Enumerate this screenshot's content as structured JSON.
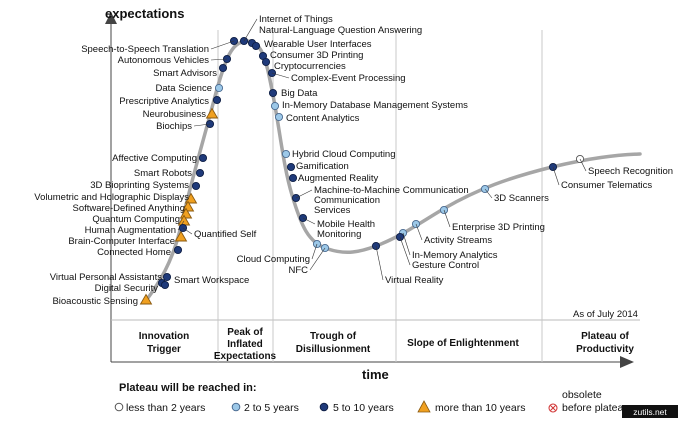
{
  "axes": {
    "y_label": "expectations",
    "x_label": "time"
  },
  "as_of": "As of July 2014",
  "phases": [
    {
      "lines": [
        "Innovation",
        "Trigger"
      ]
    },
    {
      "lines": [
        "Peak of",
        "Inflated",
        "Expectations"
      ]
    },
    {
      "lines": [
        "Trough of",
        "Disillusionment"
      ]
    },
    {
      "lines": [
        "Slope of Enlightenment"
      ]
    },
    {
      "lines": [
        "Plateau of",
        "Productivity"
      ]
    }
  ],
  "legend": {
    "title": "Plateau will be reached in:",
    "items": [
      {
        "label": "less than 2 years",
        "marker": "circle",
        "color": "#ffffff"
      },
      {
        "label": "2 to 5 years",
        "marker": "circle",
        "color": "#9cc8e8"
      },
      {
        "label": "5 to 10 years",
        "marker": "circle",
        "color": "#1f3a7a"
      },
      {
        "label": "more than 10 years",
        "marker": "triangle",
        "color": "#f0a020"
      },
      {
        "label_lines": [
          "obsolete",
          "before plateau"
        ],
        "marker": "x-circle",
        "color": "#d03030"
      }
    ]
  },
  "watermark": "zutils.net",
  "colors": {
    "curve": "#a6a6a6",
    "less2": "#ffffff",
    "two5": "#9cc8e8",
    "five10": "#1f3a7a",
    "more10": "#f0a020",
    "obsolete": "#d03030"
  },
  "technologies": [
    {
      "name": "Internet of Things",
      "t": "5-10"
    },
    {
      "name": "Natural-Language Question Answering",
      "t": "5-10"
    },
    {
      "name": "Wearable User Interfaces",
      "t": "5-10"
    },
    {
      "name": "Consumer 3D Printing",
      "t": "5-10"
    },
    {
      "name": "Cryptocurrencies",
      "t": "5-10"
    },
    {
      "name": "Complex-Event Processing",
      "t": "5-10"
    },
    {
      "name": "Big Data",
      "t": "5-10"
    },
    {
      "name": "In-Memory Database Management Systems",
      "t": "2-5"
    },
    {
      "name": "Content Analytics",
      "t": "2-5"
    },
    {
      "name": "Speech-to-Speech Translation",
      "t": "5-10"
    },
    {
      "name": "Autonomous Vehicles",
      "t": "5-10"
    },
    {
      "name": "Smart Advisors",
      "t": "5-10"
    },
    {
      "name": "Data Science",
      "t": "2-5"
    },
    {
      "name": "Prescriptive Analytics",
      "t": "5-10"
    },
    {
      "name": "Neurobusiness",
      "t": ">10"
    },
    {
      "name": "Biochips",
      "t": "5-10"
    },
    {
      "name": "Affective Computing",
      "t": "5-10"
    },
    {
      "name": "Smart Robots",
      "t": "5-10"
    },
    {
      "name": "3D Bioprinting Systems",
      "t": "5-10"
    },
    {
      "name": "Volumetric and Holographic Displays",
      "t": ">10"
    },
    {
      "name": "Software-Defined Anything",
      "t": ">10"
    },
    {
      "name": "Quantum Computing",
      "t": ">10"
    },
    {
      "name": "Human Augmentation",
      "t": ">10"
    },
    {
      "name": "Brain-Computer Interface",
      "t": ">10"
    },
    {
      "name": "Connected Home",
      "t": "5-10"
    },
    {
      "name": "Quantified Self",
      "t": "5-10"
    },
    {
      "name": "Virtual Personal Assistants",
      "t": "5-10"
    },
    {
      "name": "Digital Security",
      "t": "5-10"
    },
    {
      "name": "Bioacoustic Sensing",
      "t": ">10"
    },
    {
      "name": "Smart Workspace",
      "t": "5-10"
    },
    {
      "name": "Hybrid Cloud Computing",
      "t": "2-5"
    },
    {
      "name": "Gamification",
      "t": "5-10"
    },
    {
      "name": "Augmented Reality",
      "t": "5-10"
    },
    {
      "name": "Machine-to-Machine Communication Services",
      "t": "5-10"
    },
    {
      "name": "Mobile Health Monitoring",
      "t": "5-10"
    },
    {
      "name": "Cloud Computing",
      "t": "2-5"
    },
    {
      "name": "NFC",
      "t": "2-5"
    },
    {
      "name": "Virtual Reality",
      "t": "5-10"
    },
    {
      "name": "In-Memory Analytics",
      "t": "2-5"
    },
    {
      "name": "Gesture Control",
      "t": "5-10"
    },
    {
      "name": "Activity Streams",
      "t": "2-5"
    },
    {
      "name": "Enterprise 3D Printing",
      "t": "2-5"
    },
    {
      "name": "3D Scanners",
      "t": "2-5"
    },
    {
      "name": "Consumer Telematics",
      "t": "5-10"
    },
    {
      "name": "Speech Recognition",
      "t": "<2"
    }
  ]
}
